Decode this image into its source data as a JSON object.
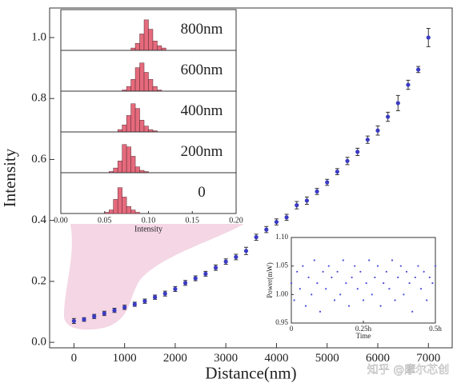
{
  "chart_data": [
    {
      "type": "scatter",
      "xlabel": "Distance(nm)",
      "ylabel": "Intensity",
      "color": "#3a3ac4",
      "x": [
        0,
        200,
        400,
        600,
        800,
        1000,
        1200,
        1400,
        1600,
        1800,
        2000,
        2200,
        2400,
        2600,
        2800,
        3000,
        3200,
        3400,
        3600,
        3800,
        4000,
        4200,
        4400,
        4600,
        4800,
        5000,
        5200,
        5400,
        5600,
        5800,
        6000,
        6200,
        6400,
        6600,
        6800,
        7000
      ],
      "values": [
        0.07,
        0.075,
        0.085,
        0.095,
        0.105,
        0.115,
        0.125,
        0.135,
        0.148,
        0.16,
        0.175,
        0.195,
        0.21,
        0.225,
        0.245,
        0.265,
        0.28,
        0.3,
        0.345,
        0.37,
        0.395,
        0.41,
        0.45,
        0.465,
        0.495,
        0.525,
        0.56,
        0.595,
        0.625,
        0.665,
        0.695,
        0.74,
        0.785,
        0.845,
        0.895,
        1.0
      ],
      "errors": [
        0.008,
        0.006,
        0.007,
        0.007,
        0.007,
        0.007,
        0.007,
        0.007,
        0.007,
        0.008,
        0.008,
        0.008,
        0.008,
        0.008,
        0.009,
        0.009,
        0.009,
        0.012,
        0.01,
        0.01,
        0.01,
        0.01,
        0.012,
        0.012,
        0.01,
        0.01,
        0.01,
        0.012,
        0.012,
        0.012,
        0.015,
        0.015,
        0.025,
        0.015,
        0.01,
        0.03
      ],
      "xlim": [
        -480,
        7470
      ],
      "ylim": [
        -0.018,
        1.097
      ],
      "xticks": [
        0,
        1000,
        2000,
        3000,
        4000,
        5000,
        6000,
        7000
      ],
      "yticks": [
        {
          "value": 0,
          "label": "0.0"
        },
        {
          "value": 0.2,
          "label": "0.2"
        },
        {
          "value": 0.4,
          "label": "0.4"
        },
        {
          "value": 0.6,
          "label": "0.6"
        },
        {
          "value": 0.8,
          "label": "0.8"
        },
        {
          "value": 1.0,
          "label": "1.0"
        }
      ]
    },
    {
      "type": "histogram",
      "xlabel": "Intensity",
      "color": "#e56a7c",
      "bins": [
        0.045,
        0.05,
        0.055,
        0.06,
        0.065,
        0.07,
        0.075,
        0.08,
        0.085,
        0.09,
        0.095,
        0.1,
        0.105,
        0.11,
        0.115,
        0.12,
        0.125
      ],
      "panels": [
        {
          "name": "800nm",
          "values": [
            0,
            0,
            0,
            0,
            0,
            0,
            0,
            2,
            6,
            14,
            26,
            18,
            8,
            4,
            2,
            0
          ]
        },
        {
          "name": "600nm",
          "values": [
            0,
            0,
            0,
            0,
            0,
            1,
            4,
            10,
            20,
            24,
            16,
            10,
            4,
            1,
            0,
            0
          ]
        },
        {
          "name": "400nm",
          "values": [
            0,
            0,
            0,
            0,
            2,
            6,
            14,
            24,
            20,
            10,
            5,
            2,
            1,
            0,
            0,
            0
          ]
        },
        {
          "name": "200nm",
          "values": [
            0,
            0,
            1,
            4,
            10,
            24,
            22,
            14,
            5,
            2,
            1,
            0,
            0,
            0,
            0,
            0
          ]
        },
        {
          "name": "0",
          "values": [
            0,
            1,
            3,
            12,
            22,
            14,
            6,
            3,
            1,
            0,
            0,
            0,
            0,
            0,
            0,
            0
          ]
        }
      ],
      "xlim": [
        0,
        0.2
      ],
      "ylim": [
        0,
        32
      ],
      "xticks": [
        {
          "value": 0,
          "label": "0.00"
        },
        {
          "value": 0.05,
          "label": "0.05"
        },
        {
          "value": 0.1,
          "label": "0.10"
        },
        {
          "value": 0.15,
          "label": "0.15"
        },
        {
          "value": 0.2,
          "label": "0.20"
        }
      ]
    },
    {
      "type": "scatter",
      "xlabel": "Time",
      "ylabel": "Power(mW)",
      "color": "#4a4ad8",
      "x": [
        0,
        0.01,
        0.02,
        0.03,
        0.04,
        0.05,
        0.06,
        0.07,
        0.08,
        0.09,
        0.1,
        0.11,
        0.12,
        0.13,
        0.14,
        0.15,
        0.16,
        0.17,
        0.18,
        0.19,
        0.2,
        0.21,
        0.22,
        0.23,
        0.24,
        0.25,
        0.26,
        0.27,
        0.28,
        0.29,
        0.3,
        0.31,
        0.32,
        0.33,
        0.34,
        0.35,
        0.36,
        0.37,
        0.38,
        0.39,
        0.4,
        0.41,
        0.42,
        0.43,
        0.44,
        0.45,
        0.46,
        0.47,
        0.48,
        0.49,
        0.5
      ],
      "values": [
        1.02,
        0.99,
        1.04,
        1.01,
        1.05,
        0.98,
        1.03,
        1.0,
        1.06,
        1.02,
        0.97,
        1.04,
        1.01,
        1.05,
        1.03,
        0.99,
        1.04,
        1.0,
        1.06,
        1.02,
        0.98,
        1.03,
        1.05,
        1.01,
        1.04,
        0.99,
        1.02,
        1.06,
        1.0,
        1.03,
        1.05,
        0.98,
        1.02,
        1.04,
        1.01,
        1.06,
        0.99,
        1.03,
        1.05,
        1.0,
        1.04,
        1.02,
        0.97,
        1.03,
        1.05,
        1.01,
        1.04,
        0.99,
        1.03,
        1.02,
        1.05
      ],
      "xlim": [
        0,
        0.5
      ],
      "ylim": [
        0.95,
        1.1
      ],
      "xticks": [
        0,
        {
          "value": 0.25,
          "label": "0.25h"
        },
        {
          "value": 0.5,
          "label": "0.5h"
        }
      ],
      "yticks": [
        {
          "value": 0.95,
          "label": "0.95"
        },
        {
          "value": 1.0,
          "label": "1.00"
        },
        {
          "value": 1.05,
          "label": "1.05"
        },
        {
          "value": 1.1,
          "label": "1.10"
        }
      ]
    }
  ],
  "watermark": "知乎 @摩尔芯创"
}
